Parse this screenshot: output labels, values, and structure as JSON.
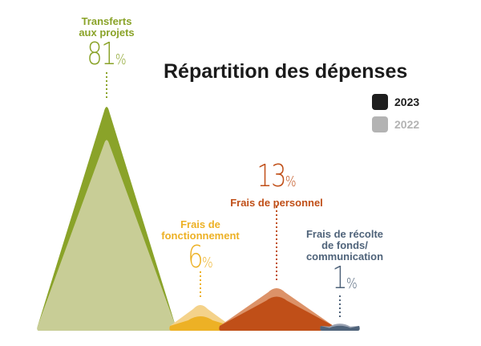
{
  "chart_data": {
    "type": "area",
    "title": "Répartition des dépenses",
    "legend": [
      {
        "name": "2023",
        "color": "#1e1e1e"
      },
      {
        "name": "2022",
        "color": "#b3b3b3"
      }
    ],
    "legend_placement": "top-right",
    "categories": [
      {
        "label": "Transferts aux projets",
        "lines": [
          "Transferts",
          "aux projets"
        ],
        "value_2023": 81,
        "value_2022_est": 69,
        "pct_text": "81",
        "color_2023": "#8aa329",
        "color_2022": "#c8cd96",
        "label_color": "#8aa329",
        "front": "2022"
      },
      {
        "label": "Frais de fonctionnement",
        "lines": [
          "Frais de",
          "fonctionnement"
        ],
        "value_2023": 6,
        "value_2022_est": 10,
        "pct_text": "6",
        "color_2023": "#edb125",
        "color_2022": "#f4d28a",
        "label_color": "#edb125",
        "front": "2023"
      },
      {
        "label": "Frais de personnel",
        "lines": [
          "Frais de personnel"
        ],
        "value_2023": 13,
        "value_2022_est": 16,
        "pct_text": "13",
        "color_2023": "#c04f18",
        "color_2022": "#dc9268",
        "label_color": "#c04f18",
        "front": "2023"
      },
      {
        "label": "Frais de récolte de fonds/ communication",
        "lines": [
          "Frais de récolte",
          "de fonds/",
          "communication"
        ],
        "value_2023": 1,
        "value_2022_est": 3,
        "pct_text": "1",
        "color_2023": "#4f637a",
        "color_2022": "#9ba3b3",
        "label_color": "#4f637a",
        "front": "2023"
      }
    ],
    "percent_sign": "%"
  }
}
